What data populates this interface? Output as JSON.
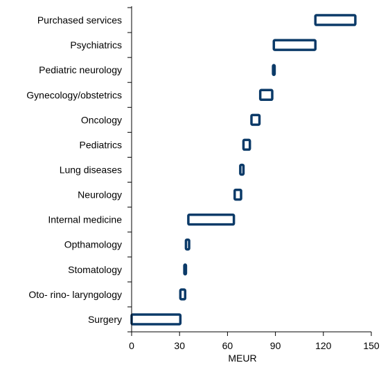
{
  "chart_data": {
    "type": "bar",
    "orientation": "horizontal",
    "style": "floating-range",
    "title": "",
    "xlabel": "MEUR",
    "ylabel": "",
    "xlim": [
      0,
      150
    ],
    "xticks": [
      0,
      30,
      60,
      90,
      120,
      150
    ],
    "xtick_labels": [
      "0",
      "30",
      "60",
      "90",
      "120",
      "150"
    ],
    "grid": false,
    "legend": "none",
    "bar_color": "#0b3a68",
    "fill_color": "#ffffff",
    "categories": [
      "Purchased services",
      "Psychiatrics",
      "Pediatric neurology",
      "Gynecology/obstetrics",
      "Oncology",
      "Pediatrics",
      "Lung diseases",
      "Neurology",
      "Internal medicine",
      "Opthamology",
      "Stomatology",
      "Oto- rino- laryngology",
      "Surgery"
    ],
    "ranges": [
      [
        115,
        140
      ],
      [
        89,
        115
      ],
      [
        88.5,
        89.5
      ],
      [
        80.5,
        88
      ],
      [
        75,
        80
      ],
      [
        70,
        74
      ],
      [
        68,
        70
      ],
      [
        64.5,
        68.5
      ],
      [
        35.5,
        64
      ],
      [
        34,
        36
      ],
      [
        33,
        34
      ],
      [
        30.5,
        33.5
      ],
      [
        0,
        30.5
      ]
    ]
  }
}
